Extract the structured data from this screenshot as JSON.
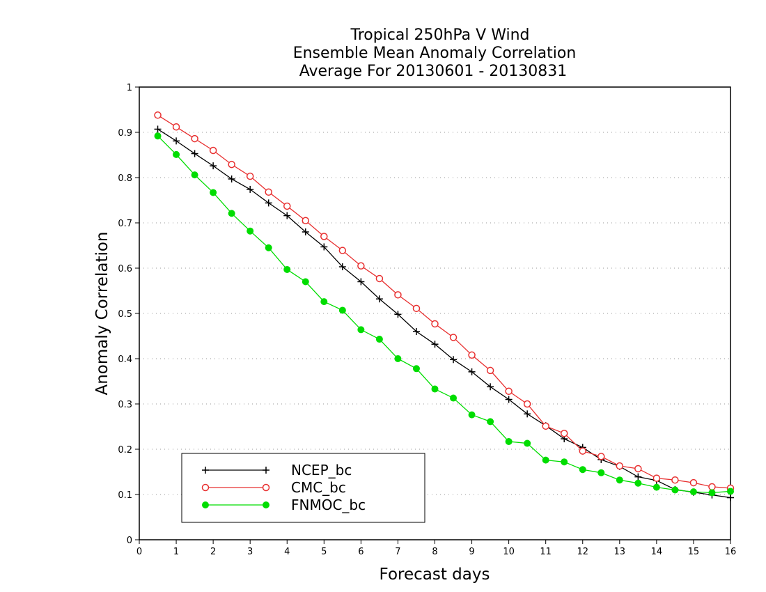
{
  "chart_data": {
    "type": "line",
    "title": [
      "Tropical 250hPa V Wind",
      "Ensemble Mean Anomaly Correlation",
      "Average For 20130601 - 20130831"
    ],
    "xlabel": "Forecast days",
    "ylabel": "Anomaly Correlation",
    "xlim": [
      0,
      16
    ],
    "ylim": [
      0,
      1
    ],
    "x_ticks": [
      "0",
      "1",
      "2",
      "3",
      "4",
      "5",
      "6",
      "7",
      "8",
      "9",
      "10",
      "11",
      "12",
      "13",
      "14",
      "15",
      "16"
    ],
    "y_ticks": [
      "0",
      "0.1",
      "0.2",
      "0.3",
      "0.4",
      "0.5",
      "0.6",
      "0.7",
      "0.8",
      "0.9",
      "1"
    ],
    "grid": true,
    "legend_position": "bottom-left",
    "x": [
      0.5,
      1,
      1.5,
      2,
      2.5,
      3,
      3.5,
      4,
      4.5,
      5,
      5.5,
      6,
      6.5,
      7,
      7.5,
      8,
      8.5,
      9,
      9.5,
      10,
      10.5,
      11,
      11.5,
      12,
      12.5,
      13,
      13.5,
      14,
      14.5,
      15,
      15.5,
      16
    ],
    "series": [
      {
        "name": "NCEP_bc",
        "color": "#000000",
        "marker": "plus",
        "values": [
          0.907,
          0.881,
          0.853,
          0.826,
          0.797,
          0.774,
          0.744,
          0.716,
          0.68,
          0.647,
          0.603,
          0.57,
          0.532,
          0.498,
          0.46,
          0.432,
          0.398,
          0.371,
          0.338,
          0.31,
          0.278,
          0.252,
          0.223,
          0.204,
          0.177,
          0.162,
          0.139,
          0.131,
          0.111,
          0.105,
          0.099,
          0.093
        ]
      },
      {
        "name": "CMC_bc",
        "color": "#e83030",
        "marker": "open-circle",
        "values": [
          0.938,
          0.912,
          0.886,
          0.86,
          0.829,
          0.803,
          0.768,
          0.737,
          0.705,
          0.67,
          0.639,
          0.605,
          0.577,
          0.541,
          0.511,
          0.477,
          0.447,
          0.408,
          0.374,
          0.328,
          0.3,
          0.251,
          0.235,
          0.196,
          0.184,
          0.163,
          0.157,
          0.136,
          0.132,
          0.126,
          0.117,
          0.114
        ]
      },
      {
        "name": "FNMOC_bc",
        "color": "#00dd00",
        "marker": "filled-circle",
        "values": [
          0.892,
          0.851,
          0.806,
          0.767,
          0.721,
          0.682,
          0.645,
          0.597,
          0.57,
          0.526,
          0.507,
          0.464,
          0.443,
          0.4,
          0.378,
          0.333,
          0.313,
          0.276,
          0.261,
          0.217,
          0.213,
          0.176,
          0.172,
          0.155,
          0.148,
          0.132,
          0.125,
          0.116,
          0.11,
          0.106,
          0.104,
          0.107
        ]
      }
    ]
  }
}
